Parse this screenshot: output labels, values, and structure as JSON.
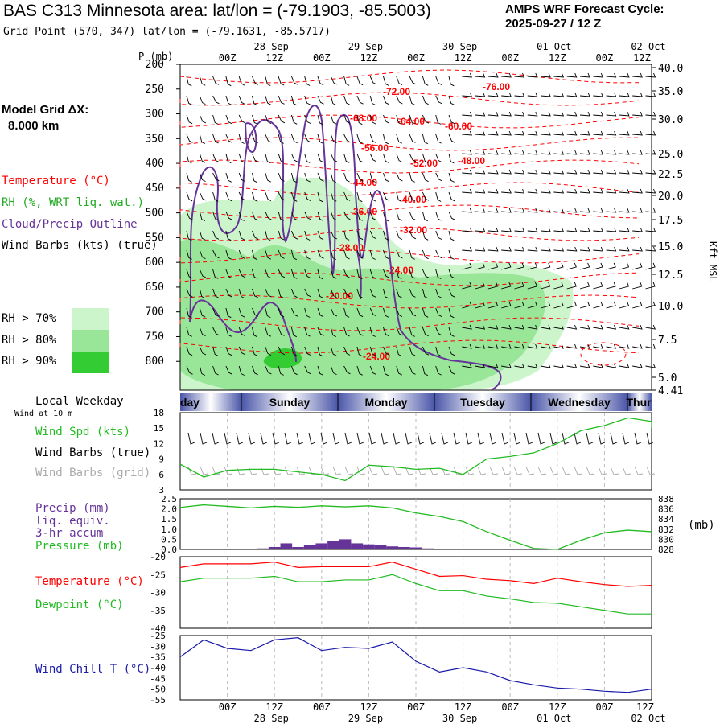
{
  "header": {
    "title": "BAS C313 Minnesota area:  lat/lon = (-79.1903, -85.5003)",
    "grid_line": "Grid Point (570, 347) lat/lon = (-79.1631, -85.5717)",
    "cycle_title": "AMPS WRF Forecast Cycle:",
    "cycle_value": "2025-09-27 / 12  Z"
  },
  "side": {
    "model_grid_label": "Model Grid ΔX:",
    "model_grid_value": "8.000 km",
    "legend_temperature": "Temperature (°C)",
    "legend_rh": "RH (%, WRT liq. wat.)",
    "legend_cloud": "Cloud/Precip Outline",
    "legend_wind": "Wind Barbs (kts) (true)",
    "rh70": "RH > 70%",
    "rh80": "RH > 80%",
    "rh90": "RH > 90%",
    "local_weekday": "Local Weekday",
    "wind_at_10m": "Wind at 10 m",
    "p_mb": "P (mb)",
    "kft_msl": "Kft MSL",
    "mb_unit": "(mb)"
  },
  "colors": {
    "temperature": "#ff0000",
    "rh70": "#ccf5cc",
    "rh80": "#99e699",
    "rh90": "#33cc33",
    "cloud": "#663399",
    "wind_grid": "#aaaaaa",
    "wind_speed": "#22bb22",
    "precip": "#663399",
    "pressure": "#22bb22",
    "dewpoint": "#22bb22",
    "windchill": "#1a1aaa",
    "weekday_band": "#5a6ab0"
  },
  "chart_data": [
    {
      "type": "heatmap",
      "name": "cross-section",
      "x_ticks_hour": [
        "00Z",
        "12Z",
        "00Z",
        "12Z",
        "00Z",
        "12Z",
        "00Z",
        "12Z",
        "00Z",
        "12Z"
      ],
      "x_dates": [
        "28 Sep",
        "29 Sep",
        "30 Sep",
        "01 Oct",
        "02 Oct"
      ],
      "y_pressure_ticks": [
        200,
        250,
        300,
        350,
        400,
        450,
        500,
        550,
        600,
        650,
        700,
        750,
        800
      ],
      "y_height_ticks": [
        "40.0",
        "35.0",
        "30.0",
        "25.0",
        "22.5",
        "20.0",
        "17.5",
        "15.0",
        "12.5",
        "10.0",
        "7.5",
        "5.0",
        "4.41"
      ],
      "temperature_labels": [
        "-76.00",
        "-72.00",
        "-68.00",
        "-64.00",
        "-60.00",
        "-56.00",
        "-52.00",
        "-48.00",
        "-44.00",
        "-40.00",
        "-36.00",
        "-32.00",
        "-28.00",
        "-24.00",
        "-20.00",
        "-24.00"
      ],
      "weekdays": [
        "Saturday",
        "Sunday",
        "Monday",
        "Tuesday",
        "Wednesday",
        "Thursday"
      ]
    },
    {
      "type": "line",
      "name": "wind",
      "labels": [
        "Wind Spd (kts)",
        "Wind Barbs (true)",
        "Wind Barbs (grid)"
      ],
      "y_ticks": [
        3,
        6,
        9,
        12,
        15,
        18
      ],
      "ylim": [
        3,
        18
      ],
      "x_hours": [
        0,
        6,
        12,
        18,
        24,
        30,
        36,
        42,
        48,
        54,
        60,
        66,
        72,
        78,
        84,
        90,
        96,
        102,
        108,
        114,
        120
      ],
      "wind_speed": [
        8,
        5.5,
        6.8,
        7,
        7,
        6.5,
        6,
        4.8,
        7.8,
        7.5,
        7,
        7.2,
        6,
        9,
        9.5,
        10.2,
        12,
        14.5,
        15.5,
        17,
        16.3
      ],
      "wind_speed_end": 15
    },
    {
      "type": "bar",
      "name": "precip-pressure",
      "labels": [
        "Precip (mm)",
        "liq. equiv.",
        "3-hr accum",
        "Pressure (mb)"
      ],
      "precip_ticks": [
        "0.0",
        "0.5",
        "1.0",
        "1.5",
        "2.0",
        "2.5"
      ],
      "pressure_ticks": [
        828,
        830,
        832,
        834,
        836,
        838
      ],
      "ylim_precip": [
        0,
        2.5
      ],
      "ylim_pressure": [
        828,
        838
      ],
      "x_hours": [
        0,
        6,
        12,
        18,
        24,
        30,
        36,
        42,
        48,
        54,
        60,
        66,
        72,
        78,
        84,
        90,
        96,
        102,
        108,
        114,
        120
      ],
      "pressure": [
        836.3,
        836.8,
        836.5,
        836.2,
        836.5,
        836.3,
        836.6,
        836.4,
        836.6,
        836.2,
        835.2,
        834.5,
        833.5,
        831.5,
        829.8,
        828.2,
        828,
        829.8,
        831.3,
        831.8,
        831.5
      ],
      "precip_x": [
        21,
        24,
        27,
        30,
        33,
        36,
        39,
        42,
        45,
        48,
        51,
        54,
        57,
        60,
        63,
        66,
        69,
        72
      ],
      "precip": [
        0.05,
        0.12,
        0.3,
        0.12,
        0.2,
        0.3,
        0.4,
        0.5,
        0.3,
        0.25,
        0.2,
        0.15,
        0.12,
        0.1,
        0.05,
        0.03,
        0.0,
        0.0
      ]
    },
    {
      "type": "line",
      "name": "temperature-dewpoint",
      "labels": [
        "Temperature (°C)",
        "Dewpoint (°C)"
      ],
      "y_ticks": [
        -20,
        -25,
        -30,
        -35,
        -40
      ],
      "ylim": [
        -40,
        -20
      ],
      "x_hours": [
        0,
        6,
        12,
        18,
        24,
        30,
        36,
        42,
        48,
        54,
        60,
        66,
        72,
        78,
        84,
        90,
        96,
        102,
        108,
        114,
        120
      ],
      "temperature": [
        -23,
        -22,
        -22,
        -22,
        -21.5,
        -23,
        -22.8,
        -22.8,
        -22.8,
        -21.5,
        -23.5,
        -25.5,
        -25.3,
        -26.3,
        -26.7,
        -27.5,
        -26,
        -27,
        -27.8,
        -28.3,
        -28
      ],
      "dewpoint": [
        -27,
        -26,
        -26,
        -26,
        -25.5,
        -27,
        -27,
        -26.5,
        -26.5,
        -25,
        -27.5,
        -29.5,
        -29.5,
        -31,
        -31.8,
        -32.8,
        -33,
        -34,
        -35,
        -36,
        -36
      ]
    },
    {
      "type": "line",
      "name": "wind-chill",
      "labels": [
        "Wind Chill T (°C)"
      ],
      "y_ticks": [
        -25,
        -30,
        -35,
        -40,
        -45,
        -50,
        -55
      ],
      "ylim": [
        -55,
        -25
      ],
      "x_hours": [
        0,
        6,
        12,
        18,
        24,
        30,
        36,
        42,
        48,
        54,
        60,
        66,
        72,
        78,
        84,
        90,
        96,
        102,
        108,
        114,
        120
      ],
      "wind_chill": [
        -35,
        -27,
        -31,
        -32,
        -27,
        -26,
        -32,
        -30.5,
        -31,
        -28,
        -37,
        -42,
        -40,
        -42,
        -46,
        -48,
        -49.5,
        -50,
        -51,
        -51.5,
        -50
      ]
    }
  ]
}
